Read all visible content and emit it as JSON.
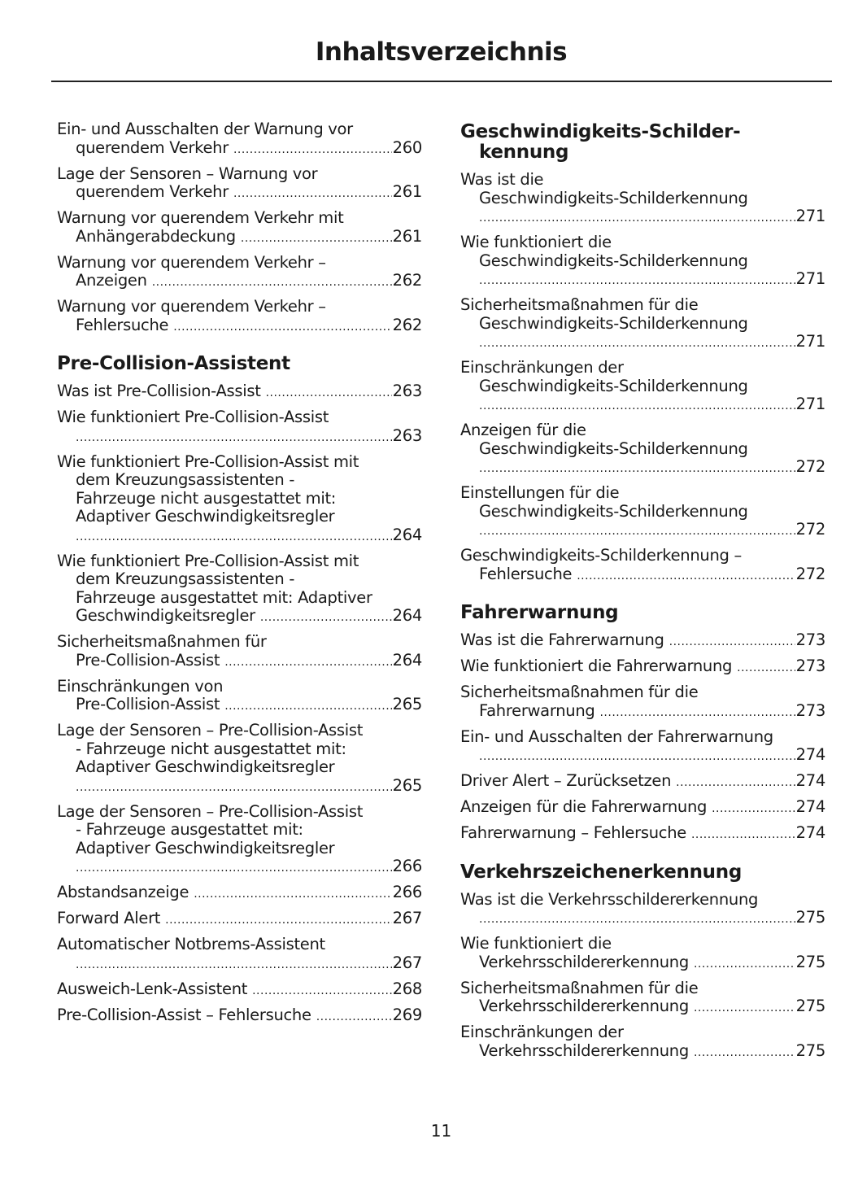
{
  "title": "Inhaltsverzeichnis",
  "page_number": "11",
  "columns": [
    {
      "sections": [
        {
          "heading": [],
          "entries": [
            {
              "lines": [
                "Ein- und Ausschalten der Warnung vor",
                "querendem  Verkehr"
              ],
              "page": "260"
            },
            {
              "lines": [
                "Lage der Sensoren – Warnung vor",
                "querendem Verkehr"
              ],
              "page": "261"
            },
            {
              "lines": [
                "Warnung vor querendem Verkehr mit",
                "Anhängerabdeckung"
              ],
              "page": "261"
            },
            {
              "lines": [
                "Warnung vor querendem Verkehr –",
                "Anzeigen"
              ],
              "page": "262"
            },
            {
              "lines": [
                "Warnung vor querendem Verkehr –",
                "Fehlersuche"
              ],
              "page": "262"
            }
          ]
        },
        {
          "heading": [
            "Pre-Collision-Assistent"
          ],
          "entries": [
            {
              "lines": [
                "Was ist Pre-Collision-Assist"
              ],
              "page": "263"
            },
            {
              "lines": [
                "Wie funktioniert Pre-Collision-Assist",
                ""
              ],
              "page": "263"
            },
            {
              "lines": [
                "Wie funktioniert Pre-Collision-Assist mit",
                "dem Kreuzungsassistenten -",
                "Fahrzeuge nicht ausgestattet mit:",
                "Adaptiver Geschwindigkeitsregler",
                ""
              ],
              "page": "264"
            },
            {
              "lines": [
                "Wie funktioniert Pre-Collision-Assist mit",
                "dem Kreuzungsassistenten -",
                "Fahrzeuge ausgestattet mit: Adaptiver",
                "Geschwindigkeitsregler"
              ],
              "page": "264"
            },
            {
              "lines": [
                "Sicherheitsmaßnahmen für",
                "Pre-Collision-Assist"
              ],
              "page": "264"
            },
            {
              "lines": [
                "Einschränkungen von",
                "Pre-Collision-Assist"
              ],
              "page": "265"
            },
            {
              "lines": [
                "Lage der Sensoren – Pre-Collision-Assist",
                "- Fahrzeuge nicht ausgestattet mit:",
                "Adaptiver Geschwindigkeitsregler",
                ""
              ],
              "page": "265"
            },
            {
              "lines": [
                "Lage der Sensoren – Pre-Collision-Assist",
                "- Fahrzeuge ausgestattet mit:",
                "Adaptiver Geschwindigkeitsregler",
                ""
              ],
              "page": "266"
            },
            {
              "lines": [
                "Abstandsanzeige"
              ],
              "page": "266"
            },
            {
              "lines": [
                "Forward Alert"
              ],
              "page": "267"
            },
            {
              "lines": [
                "Automatischer Notbrems-Assistent",
                ""
              ],
              "page": "267"
            },
            {
              "lines": [
                "Ausweich-Lenk-Assistent"
              ],
              "page": "268"
            },
            {
              "lines": [
                "Pre-Collision-Assist – Fehlersuche"
              ],
              "page": "269"
            }
          ]
        }
      ]
    },
    {
      "sections": [
        {
          "heading": [
            "Geschwindigkeits-Schilder-",
            "kennung"
          ],
          "entries": [
            {
              "lines": [
                "Was ist die",
                "Geschwindigkeits-Schilderkennung",
                ""
              ],
              "page": "271"
            },
            {
              "lines": [
                "Wie funktioniert die",
                "Geschwindigkeits-Schilderkennung",
                ""
              ],
              "page": "271"
            },
            {
              "lines": [
                "Sicherheitsmaßnahmen für die",
                "Geschwindigkeits-Schilderkennung",
                ""
              ],
              "page": "271"
            },
            {
              "lines": [
                "Einschränkungen der",
                "Geschwindigkeits-Schilderkennung",
                ""
              ],
              "page": "271"
            },
            {
              "lines": [
                "Anzeigen für die",
                "Geschwindigkeits-Schilderkennung",
                ""
              ],
              "page": "272"
            },
            {
              "lines": [
                "Einstellungen für die",
                "Geschwindigkeits-Schilderkennung",
                ""
              ],
              "page": "272"
            },
            {
              "lines": [
                "Geschwindigkeits-Schilderkennung –",
                "Fehlersuche"
              ],
              "page": "272"
            }
          ]
        },
        {
          "heading": [
            "Fahrerwarnung"
          ],
          "entries": [
            {
              "lines": [
                "Was ist die Fahrerwarnung"
              ],
              "page": "273"
            },
            {
              "lines": [
                "Wie funktioniert die Fahrerwarnung"
              ],
              "page": "273"
            },
            {
              "lines": [
                "Sicherheitsmaßnahmen für die",
                "Fahrerwarnung"
              ],
              "page": "273"
            },
            {
              "lines": [
                "Ein- und Ausschalten der Fahrerwarnung",
                ""
              ],
              "page": "274"
            },
            {
              "lines": [
                "Driver Alert – Zurücksetzen"
              ],
              "page": "274"
            },
            {
              "lines": [
                "Anzeigen für die Fahrerwarnung"
              ],
              "page": "274"
            },
            {
              "lines": [
                "Fahrerwarnung – Fehlersuche"
              ],
              "page": "274"
            }
          ]
        },
        {
          "heading": [
            "Verkehrszeichenerkennung"
          ],
          "entries": [
            {
              "lines": [
                "Was ist die Verkehrsschildererkennung",
                ""
              ],
              "page": "275"
            },
            {
              "lines": [
                "Wie funktioniert die",
                "Verkehrsschildererkennung"
              ],
              "page": "275"
            },
            {
              "lines": [
                "Sicherheitsmaßnahmen für die",
                "Verkehrsschildererkennung"
              ],
              "page": "275"
            },
            {
              "lines": [
                "Einschränkungen der",
                "Verkehrsschildererkennung"
              ],
              "page": "275"
            }
          ]
        }
      ]
    }
  ]
}
